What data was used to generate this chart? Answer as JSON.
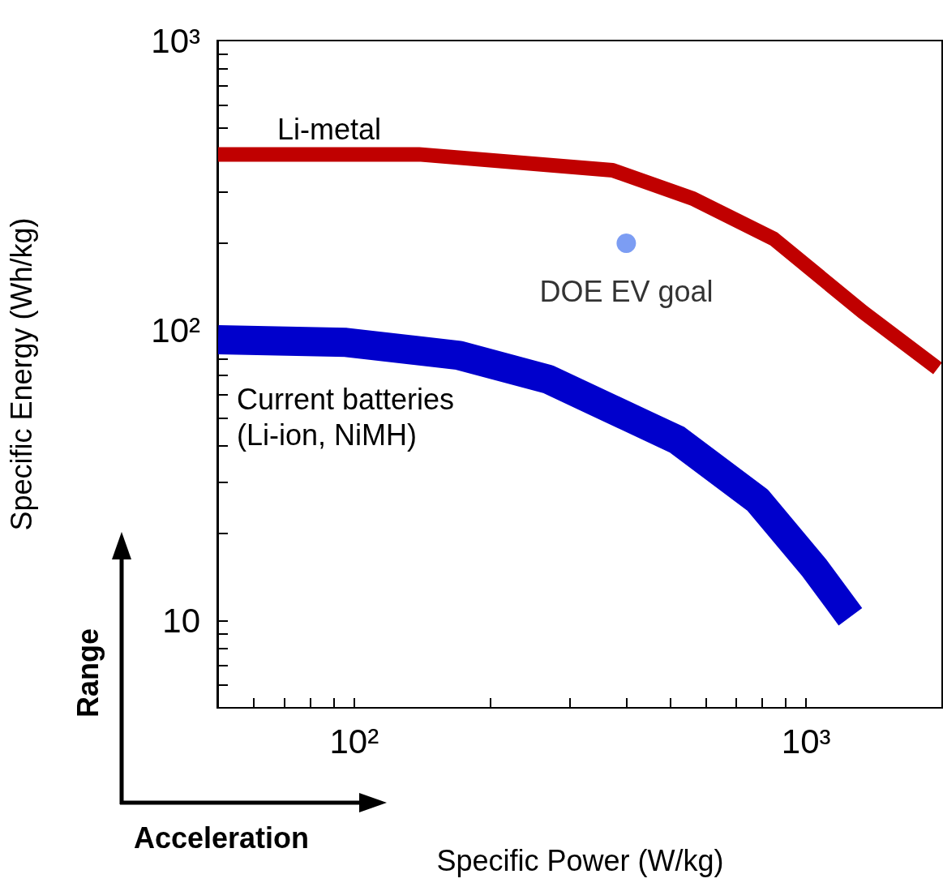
{
  "chart_data": {
    "type": "line",
    "xlabel": "Specific Power (W/kg)",
    "ylabel": "Specific Energy (Wh/kg)",
    "log": "xy",
    "grid": false,
    "legend": false,
    "xlim": [
      50,
      2000
    ],
    "ylim": [
      5,
      1000
    ],
    "xticks": [
      {
        "value": 50,
        "label": null
      },
      {
        "value": 60,
        "label": null
      },
      {
        "value": 70,
        "label": null
      },
      {
        "value": 80,
        "label": null
      },
      {
        "value": 90,
        "label": null
      },
      {
        "value": 100,
        "label": "10²"
      },
      {
        "value": 200,
        "label": null
      },
      {
        "value": 300,
        "label": null
      },
      {
        "value": 400,
        "label": null
      },
      {
        "value": 500,
        "label": null
      },
      {
        "value": 600,
        "label": null
      },
      {
        "value": 700,
        "label": null
      },
      {
        "value": 800,
        "label": null
      },
      {
        "value": 900,
        "label": null
      },
      {
        "value": 1000,
        "label": "10³"
      },
      {
        "value": 2000,
        "label": null
      }
    ],
    "yticks": [
      {
        "value": 5,
        "label": null
      },
      {
        "value": 6,
        "label": null
      },
      {
        "value": 7,
        "label": null
      },
      {
        "value": 8,
        "label": null
      },
      {
        "value": 9,
        "label": null
      },
      {
        "value": 10,
        "label": "10"
      },
      {
        "value": 20,
        "label": null
      },
      {
        "value": 30,
        "label": null
      },
      {
        "value": 40,
        "label": null
      },
      {
        "value": 50,
        "label": null
      },
      {
        "value": 60,
        "label": null
      },
      {
        "value": 70,
        "label": null
      },
      {
        "value": 80,
        "label": null
      },
      {
        "value": 90,
        "label": null
      },
      {
        "value": 100,
        "label": "10²"
      },
      {
        "value": 200,
        "label": null
      },
      {
        "value": 300,
        "label": null
      },
      {
        "value": 400,
        "label": null
      },
      {
        "value": 500,
        "label": null
      },
      {
        "value": 600,
        "label": null
      },
      {
        "value": 700,
        "label": null
      },
      {
        "value": 800,
        "label": null
      },
      {
        "value": 900,
        "label": null
      },
      {
        "value": 1000,
        "label": "10³"
      }
    ],
    "series": [
      {
        "name": "Li-metal",
        "color": "#c00000",
        "x": [
          50,
          139,
          373,
          562,
          848,
          1334,
          1954
        ],
        "values": [
          405,
          405,
          357,
          285,
          207,
          116,
          74
        ]
      },
      {
        "name": "Current batteries\n(Li-ion, NiMH)",
        "color": "#0000cc",
        "x": [
          50,
          96,
          171,
          268,
          518,
          781,
          1042,
          1253
        ],
        "values": [
          93,
          91,
          82,
          68,
          42,
          26,
          15.2,
          10.3
        ]
      },
      {
        "name": "DOE EV goal",
        "type": "scatter",
        "marker": "circle",
        "color": "#5b84f0",
        "x": [
          400
        ],
        "values": [
          200
        ]
      }
    ],
    "annotations": [
      "Range",
      "Acceleration"
    ]
  }
}
